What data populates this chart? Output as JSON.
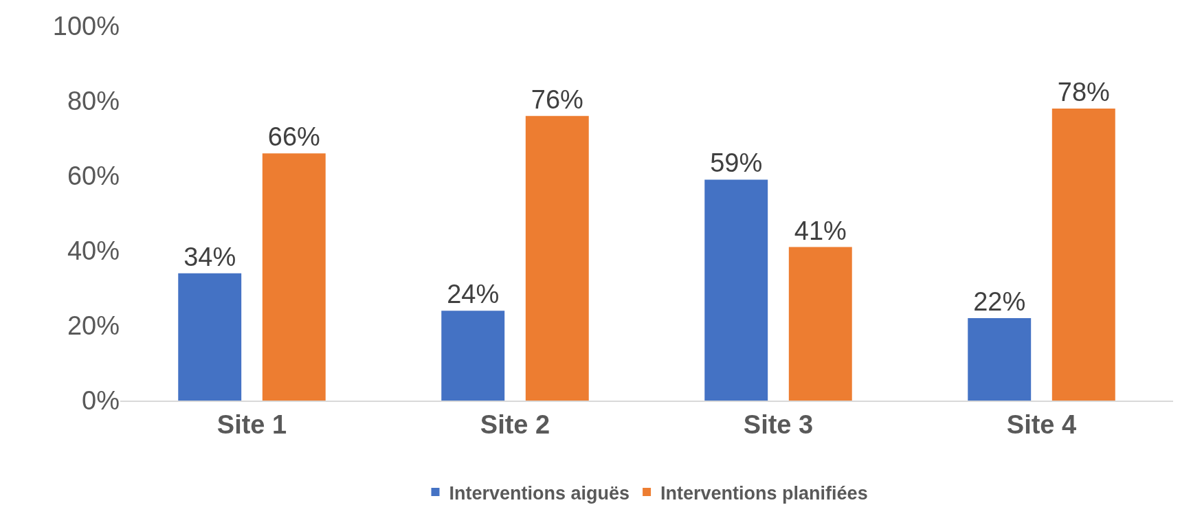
{
  "chart_data": {
    "type": "bar",
    "categories": [
      "Site 1",
      "Site 2",
      "Site 3",
      "Site 4"
    ],
    "series": [
      {
        "name": "Interventions aiguës",
        "color": "#4472c4",
        "values": [
          34,
          24,
          59,
          22
        ],
        "value_labels": [
          "34%",
          "24%",
          "59%",
          "22%"
        ]
      },
      {
        "name": "Interventions planifiées",
        "color": "#ed7d31",
        "values": [
          66,
          76,
          41,
          78
        ],
        "value_labels": [
          "66%",
          "76%",
          "41%",
          "78%"
        ]
      }
    ],
    "ylim": [
      0,
      100
    ],
    "yticks": [
      {
        "value": 0,
        "label": "0%"
      },
      {
        "value": 20,
        "label": "20%"
      },
      {
        "value": 40,
        "label": "40%"
      },
      {
        "value": 60,
        "label": "60%"
      },
      {
        "value": 80,
        "label": "80%"
      },
      {
        "value": 100,
        "label": "100%"
      }
    ],
    "grid": false,
    "legend": "bottom"
  }
}
